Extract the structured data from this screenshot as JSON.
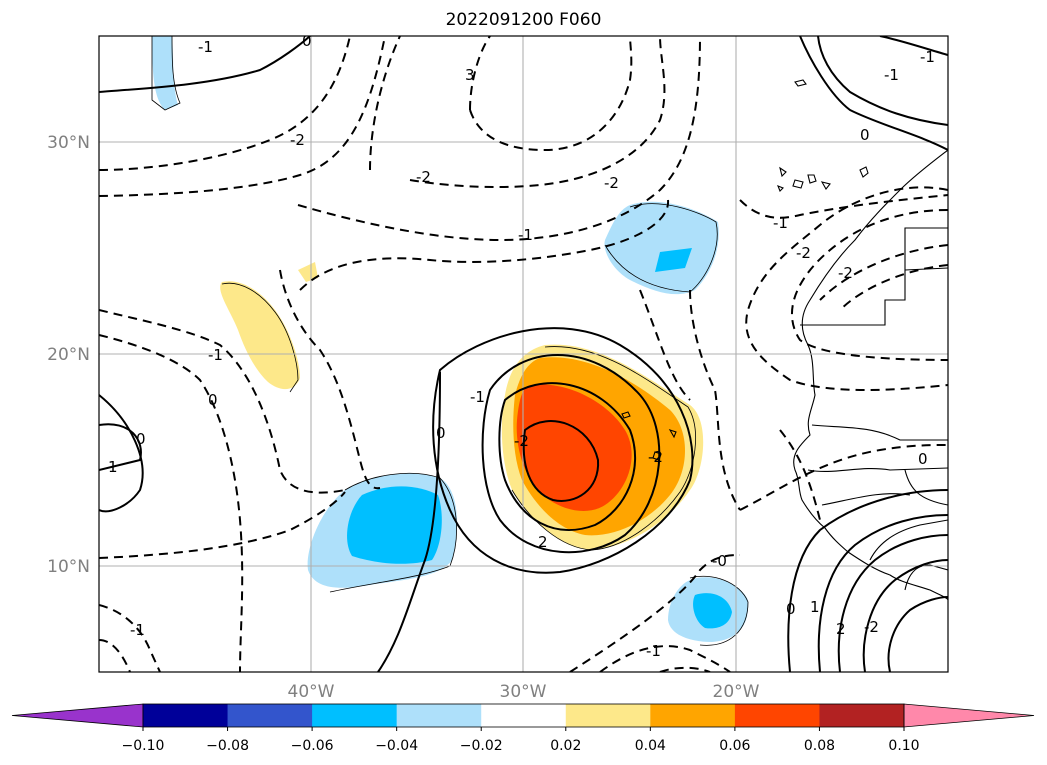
{
  "title": "2022091200 F060",
  "map": {
    "lat_labels": [
      "30°N",
      "20°N",
      "10°N"
    ],
    "lon_labels": [
      "40°W",
      "30°W",
      "20°W"
    ],
    "extent": {
      "lon": [
        -50,
        -10
      ],
      "lat": [
        5,
        35
      ]
    }
  },
  "colorbar": {
    "ticks": [
      "−0.10",
      "−0.08",
      "−0.06",
      "−0.04",
      "−0.02",
      "0.02",
      "0.04",
      "0.06",
      "0.08",
      "0.10"
    ],
    "colors": [
      "#9933cc",
      "#000099",
      "#3355cc",
      "#00bfff",
      "#aee0fa",
      "#ffffff",
      "#fde88a",
      "#ffa500",
      "#ff4500",
      "#b22222",
      "#ff88aa"
    ],
    "extend": "both"
  },
  "contour_labels": [
    "-1",
    "0",
    "3",
    "-2",
    "-2",
    "-1",
    "-1",
    "-2",
    "-2",
    "-1",
    "0",
    "-1",
    "-1",
    "0",
    "-2",
    "-1",
    "1",
    "2",
    "0",
    "0",
    "-0",
    "-1",
    "1",
    "2",
    "0",
    "-2",
    "0",
    "-1",
    "-2",
    "-2"
  ],
  "shading_colors": {
    "pos_light": "#fde88a",
    "pos_mid": "#ffa500",
    "pos_high": "#ff4500",
    "neg_light": "#aee0fa",
    "neg_mid": "#00bfff"
  }
}
